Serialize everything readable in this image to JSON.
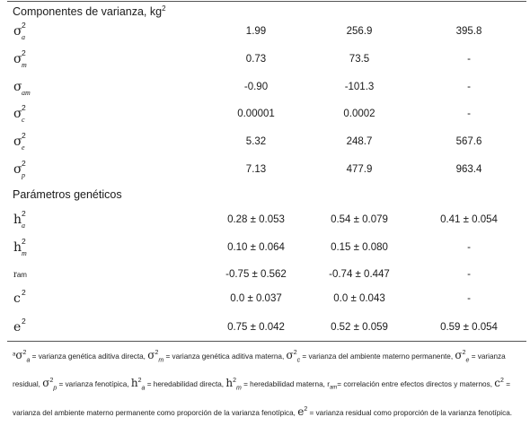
{
  "section1_title": "Componentes de varianza, kg",
  "section1_title_sup": "2",
  "section2_title": "Parámetros genéticos",
  "variance_rows": [
    {
      "symbol": "σ",
      "sup": "2",
      "sub": "a",
      "v1": "1.99",
      "v2": "256.9",
      "v3": "395.8"
    },
    {
      "symbol": "σ",
      "sup": "2",
      "sub": "m",
      "v1": "0.73",
      "v2": "73.5",
      "v3": "-"
    },
    {
      "symbol": "σ",
      "sup": "",
      "sub": "am",
      "v1": "-0.90",
      "v2": "-101.3",
      "v3": "-"
    },
    {
      "symbol": "σ",
      "sup": "2",
      "sub": "c",
      "v1": "0.00001",
      "v2": "0.0002",
      "v3": "-"
    },
    {
      "symbol": "σ",
      "sup": "2",
      "sub": "e",
      "v1": "5.32",
      "v2": "248.7",
      "v3": "567.6"
    },
    {
      "symbol": "σ",
      "sup": "2",
      "sub": "p",
      "v1": "7.13",
      "v2": "477.9",
      "v3": "963.4"
    }
  ],
  "genetic_rows": [
    {
      "symbol": "h",
      "sup": "2",
      "sub": "a",
      "v1": "0.28 ± 0.053",
      "v2": "0.54 ± 0.079",
      "v3": "0.41 ± 0.054"
    },
    {
      "symbol": "h",
      "sup": "2",
      "sub": "m",
      "v1": "0.10 ± 0.064",
      "v2": "0.15 ± 0.080",
      "v3": "-"
    },
    {
      "symbol": "r",
      "sup": "",
      "sub": "am",
      "v1": "-0.75 ± 0.562",
      "v2": "-0.74 ± 0.447",
      "v3": "-"
    },
    {
      "symbol": "c",
      "sup": "2",
      "sub": "",
      "v1": "0.0 ± 0.037",
      "v2": "0.0 ± 0.043",
      "v3": "-"
    },
    {
      "symbol": "e",
      "sup": "2",
      "sub": "",
      "v1": "0.75 ± 0.042",
      "v2": "0.52 ± 0.059",
      "v3": "0.59 ± 0.054"
    }
  ],
  "footnote": {
    "marker": "a",
    "t1": "= varianza genética aditiva directa,",
    "t2": "= varianza genética aditiva materna,",
    "t3": "= varianza del ambiente materno permanente,",
    "t4": "= varianza residual,",
    "t5": "= varianza fenotípica,",
    "t6": "= heredabilidad directa,",
    "t7": "= heredabilidad materna,",
    "ram": "r",
    "ram_sub": "am",
    "t8": "= correlación entre efectos directos y maternos,",
    "t9": "= varianza del ambiente materno permanente como proporción de la varianza fenotípica,",
    "t10": "= varianza residual como proporción de la varianza fenotípica."
  }
}
